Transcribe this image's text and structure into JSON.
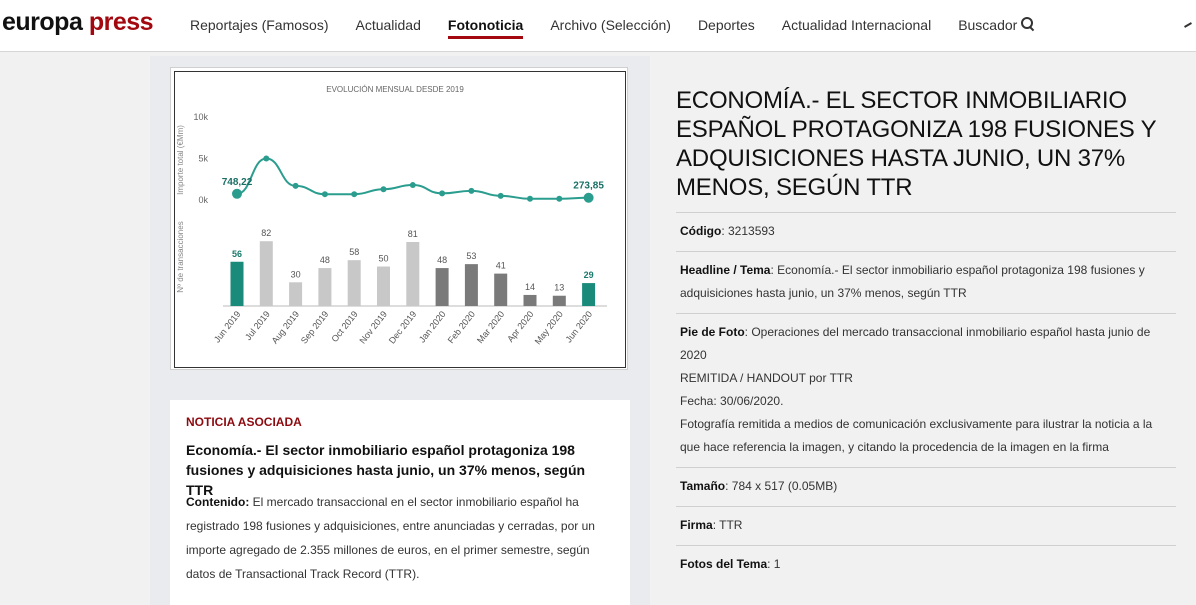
{
  "header": {
    "logo_part1": "europa",
    "logo_part2": "press",
    "nav": [
      {
        "label": "Reportajes (Famosos)",
        "active": false
      },
      {
        "label": "Actualidad",
        "active": false
      },
      {
        "label": "Fotonoticia",
        "active": true
      },
      {
        "label": "Archivo (Selección)",
        "active": false
      },
      {
        "label": "Deportes",
        "active": false
      },
      {
        "label": "Actualidad Internacional",
        "active": false
      },
      {
        "label": "Buscador",
        "active": false,
        "icon": "search-icon"
      }
    ]
  },
  "chart_data": {
    "type": "bar",
    "title": "EVOLUCIÓN MENSUAL DESDE 2019",
    "categories": [
      "Jun 2019",
      "Jul 2019",
      "Aug 2019",
      "Sep 2019",
      "Oct 2019",
      "Nov 2019",
      "Dec 2019",
      "Jan 2020",
      "Feb 2020",
      "Mar 2020",
      "Apr 2020",
      "May 2020",
      "Jun 2020"
    ],
    "line_series": {
      "name": "Importe total (€Mm)",
      "values": [
        748.22,
        5000,
        1700,
        700,
        700,
        1300,
        1800,
        800,
        1100,
        500,
        150,
        150,
        273.85
      ],
      "start_label": "748,22",
      "end_label": "273,85",
      "ylim": [
        0,
        10000
      ],
      "ticks": [
        "0k",
        "5k",
        "10k"
      ],
      "color": "#2a9d8f"
    },
    "bar_series": {
      "name": "Nº de transacciones",
      "values": [
        56,
        82,
        30,
        48,
        58,
        50,
        81,
        48,
        53,
        41,
        14,
        13,
        29
      ],
      "colors": [
        "#1a8a7a",
        "#c8c8c8",
        "#c8c8c8",
        "#c8c8c8",
        "#c8c8c8",
        "#c8c8c8",
        "#c8c8c8",
        "#7a7a7a",
        "#7a7a7a",
        "#7a7a7a",
        "#7a7a7a",
        "#7a7a7a",
        "#1a8a7a"
      ],
      "ylim": [
        0,
        100
      ]
    }
  },
  "noticia": {
    "tag": "NOTICIA ASOCIADA",
    "title": "Economía.- El sector inmobiliario español protagoniza 198 fusiones y adquisiciones hasta junio, un 37% menos, según TTR",
    "content_label": "Contenido:",
    "content": "El mercado transaccional en el sector inmobiliario español ha registrado 198 fusiones y adquisiciones, entre anunciadas y cerradas, por un importe agregado de 2.355 millones de euros, en el primer semestre, según datos de Transactional Track Record (TTR)."
  },
  "detail": {
    "headline": "ECONOMÍA.- EL SECTOR INMOBILIARIO ESPAÑOL PROTAGONIZA 198 FUSIONES Y ADQUISICIONES HASTA JUNIO, UN 37% MENOS, SEGÚN TTR",
    "codigo_label": "Código",
    "codigo": "3213593",
    "tema_label": "Headline / Tema",
    "tema": "Economía.- El sector inmobiliario español protagoniza 198 fusiones y adquisiciones hasta junio, un 37% menos, según TTR",
    "pie_label": "Pie de Foto",
    "pie_line1": "Operaciones del mercado transaccional inmobiliario español hasta junio de 2020",
    "pie_line2": "REMITIDA / HANDOUT por TTR",
    "pie_line3": "Fecha: 30/06/2020.",
    "pie_line4": "Fotografía remitida a medios de comunicación exclusivamente para ilustrar la noticia a la que hace referencia la imagen, y citando la procedencia de la imagen en la firma",
    "tamano_label": "Tamaño",
    "tamano": "784 x 517 (0.05MB)",
    "firma_label": "Firma",
    "firma": "TTR",
    "fotos_label": "Fotos del Tema",
    "fotos": "1"
  }
}
